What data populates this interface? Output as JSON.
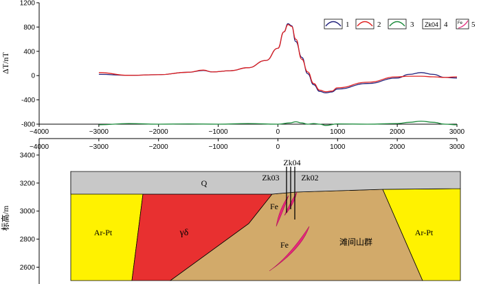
{
  "chart_data": [
    {
      "type": "line",
      "ylabel": "ΔT/nT",
      "xlim": [
        -4000,
        3000
      ],
      "ylim": [
        -800,
        1200
      ],
      "x_ticks": [
        -4000,
        -3000,
        -2000,
        -1000,
        0,
        1000,
        2000,
        3000
      ],
      "y_ticks": [
        -800,
        -400,
        0,
        400,
        800,
        1200
      ],
      "series": [
        {
          "name": "1",
          "color": "#1f1f7a",
          "points": [
            [
              -3000,
              20
            ],
            [
              -2500,
              5
            ],
            [
              -2000,
              15
            ],
            [
              -1500,
              55
            ],
            [
              -1250,
              85
            ],
            [
              -1100,
              60
            ],
            [
              -800,
              80
            ],
            [
              -500,
              130
            ],
            [
              -200,
              250
            ],
            [
              0,
              450
            ],
            [
              100,
              720
            ],
            [
              170,
              855
            ],
            [
              230,
              820
            ],
            [
              300,
              560
            ],
            [
              400,
              300
            ],
            [
              500,
              30
            ],
            [
              600,
              -150
            ],
            [
              700,
              -260
            ],
            [
              800,
              -285
            ],
            [
              900,
              -270
            ],
            [
              1000,
              -220
            ],
            [
              1500,
              -130
            ],
            [
              2000,
              -40
            ],
            [
              2200,
              20
            ],
            [
              2400,
              50
            ],
            [
              2600,
              20
            ],
            [
              2800,
              -30
            ],
            [
              3000,
              -40
            ]
          ]
        },
        {
          "name": "2",
          "color": "#e02020",
          "points": [
            [
              -3000,
              50
            ],
            [
              -2500,
              5
            ],
            [
              -2000,
              15
            ],
            [
              -1500,
              55
            ],
            [
              -1250,
              90
            ],
            [
              -1100,
              60
            ],
            [
              -800,
              80
            ],
            [
              -500,
              130
            ],
            [
              -200,
              250
            ],
            [
              0,
              450
            ],
            [
              100,
              720
            ],
            [
              170,
              840
            ],
            [
              230,
              810
            ],
            [
              300,
              600
            ],
            [
              400,
              270
            ],
            [
              500,
              60
            ],
            [
              600,
              -130
            ],
            [
              700,
              -240
            ],
            [
              800,
              -265
            ],
            [
              900,
              -255
            ],
            [
              1000,
              -200
            ],
            [
              1500,
              -110
            ],
            [
              2000,
              -20
            ],
            [
              2200,
              -10
            ],
            [
              2400,
              -10
            ],
            [
              2600,
              -20
            ],
            [
              2800,
              -30
            ],
            [
              3000,
              -20
            ]
          ]
        },
        {
          "name": "3",
          "color": "#1a8a3a",
          "points": [
            [
              -3000,
              -810
            ],
            [
              -2500,
              -790
            ],
            [
              -2000,
              -800
            ],
            [
              -1500,
              -795
            ],
            [
              -1000,
              -800
            ],
            [
              -500,
              -790
            ],
            [
              0,
              -800
            ],
            [
              200,
              -780
            ],
            [
              300,
              -760
            ],
            [
              400,
              -780
            ],
            [
              500,
              -800
            ],
            [
              600,
              -790
            ],
            [
              700,
              -800
            ],
            [
              800,
              -820
            ],
            [
              1000,
              -795
            ],
            [
              1500,
              -800
            ],
            [
              2000,
              -790
            ],
            [
              2200,
              -770
            ],
            [
              2400,
              -750
            ],
            [
              2600,
              -770
            ],
            [
              2800,
              -800
            ],
            [
              3000,
              -810
            ]
          ]
        }
      ],
      "legend": {
        "placement": "top-right",
        "entries": [
          "1",
          "2",
          "3",
          "4",
          "5"
        ],
        "drillhole_sample": "Zk04",
        "ore_sample": "Fe"
      }
    },
    {
      "type": "diagram",
      "title": "",
      "ylabel": "标高/m",
      "xlim": [
        -4000,
        3000
      ],
      "ylim": [
        2480,
        3400
      ],
      "x_ticks": [
        -4000,
        -3000,
        -2000,
        -1000,
        0,
        1000,
        2000,
        3000
      ],
      "y_ticks": [
        2600,
        2800,
        3000,
        3200,
        3400
      ],
      "units": [
        {
          "label": "Q",
          "color": "#c8c8c8"
        },
        {
          "label": "Ar-Pt",
          "color": "#fff200"
        },
        {
          "label": "γδ",
          "color": "#e83030"
        },
        {
          "label": "滩间山群",
          "color": "#d2aa6a"
        },
        {
          "label": "Fe",
          "color": "#e6287a"
        }
      ],
      "drillholes": [
        "Zk04",
        "Zk03",
        "Zk02"
      ],
      "labels": {
        "q": "Q",
        "arpt_left": "Ar-Pt",
        "arpt_right": "Ar-Pt",
        "granodiorite": "γδ",
        "group": "滩间山群",
        "fe_upper": "Fe",
        "fe_lower": "Fe",
        "zk04": "Zk04",
        "zk03": "Zk03",
        "zk02": "Zk02"
      }
    }
  ]
}
